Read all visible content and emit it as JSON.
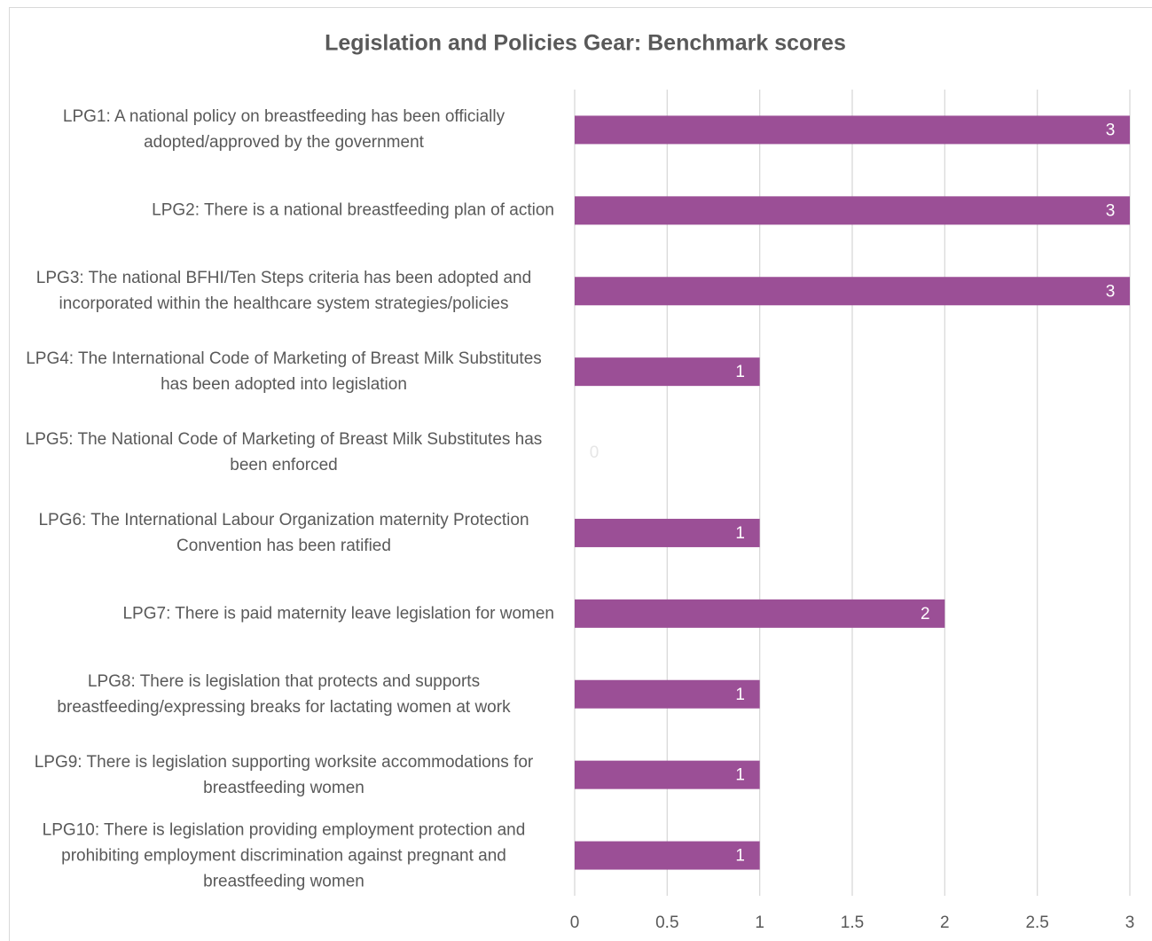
{
  "chart_data": {
    "type": "bar",
    "orientation": "horizontal",
    "title": "Legislation and Policies Gear: Benchmark scores",
    "categories": [
      "LPG1: A national policy on breastfeeding has been officially adopted/approved by the government",
      "LPG2: There is a national breastfeeding plan of action",
      "LPG3: The national BFHI/Ten Steps criteria has been adopted and incorporated within the healthcare system strategies/policies",
      "LPG4: The International Code of Marketing of Breast Milk Substitutes has been adopted into legislation",
      "LPG5: The National Code of Marketing of Breast Milk Substitutes has been enforced",
      "LPG6: The International Labour Organization maternity Protection Convention has been ratified",
      "LPG7: There is paid maternity leave legislation for women",
      "LPG8: There is legislation that protects and supports breastfeeding/expressing breaks for lactating women at work",
      "LPG9: There is legislation supporting worksite accommodations for breastfeeding women",
      "LPG10: There is legislation providing employment protection and prohibiting employment discrimination against pregnant and breastfeeding women"
    ],
    "values": [
      3,
      3,
      3,
      1,
      0,
      1,
      2,
      1,
      1,
      1
    ],
    "color": "#9b4f96",
    "xlim": [
      0,
      3
    ],
    "xticks": [
      0,
      0.5,
      1,
      1.5,
      2,
      2.5,
      3
    ],
    "grid": true
  }
}
